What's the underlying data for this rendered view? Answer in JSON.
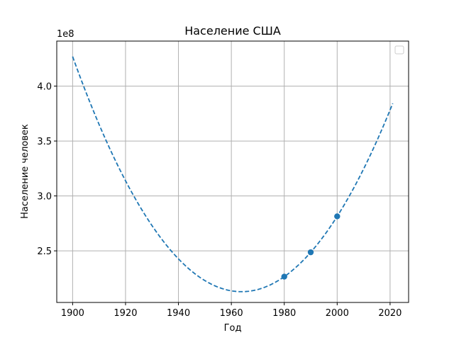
{
  "chart_data": {
    "type": "line",
    "title": "Население США",
    "xlabel": "Год",
    "ylabel": "Население человек",
    "y_offset_text": "1e8",
    "xlim": [
      1894,
      2027
    ],
    "ylim": [
      203000000,
      441000000
    ],
    "xticks": [
      1900,
      1920,
      1940,
      1960,
      1980,
      2000,
      2020
    ],
    "yticks": [
      250000000,
      300000000,
      350000000,
      400000000
    ],
    "ytick_labels": [
      "2.5",
      "3.0",
      "3.5",
      "4.0"
    ],
    "grid": true,
    "legend": {
      "placement": "top-right",
      "entries": []
    },
    "series": [
      {
        "kind": "scatter",
        "x": [
          1980,
          1990,
          2000
        ],
        "y": [
          226500000,
          248700000,
          281400000
        ],
        "color": "#1f77b4"
      },
      {
        "kind": "fit-curve",
        "style": "dashed",
        "color": "#1f77b4",
        "fit": "quadratic through the three points",
        "x_range": [
          1900,
          2021
        ]
      }
    ]
  }
}
